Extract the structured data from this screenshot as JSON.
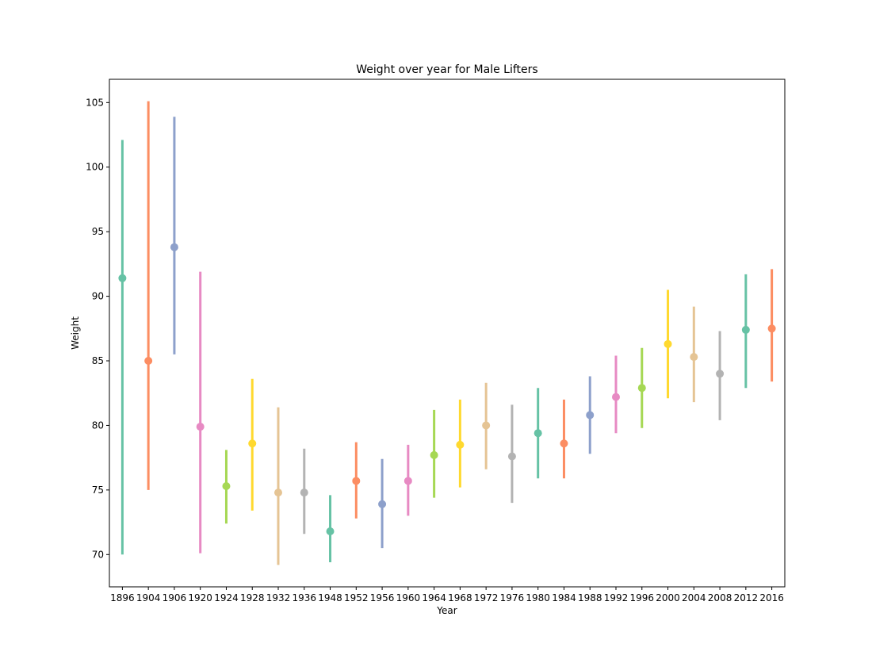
{
  "chart_data": {
    "type": "scatter",
    "title": "Weight over year for Male Lifters",
    "xlabel": "Year",
    "ylabel": "Weight",
    "ylim": [
      67.5,
      106.8
    ],
    "yticks": [
      70,
      75,
      80,
      85,
      90,
      95,
      100,
      105
    ],
    "grid": false,
    "legend": "none",
    "categories": [
      "1896",
      "1904",
      "1906",
      "1920",
      "1924",
      "1928",
      "1932",
      "1936",
      "1948",
      "1952",
      "1956",
      "1960",
      "1964",
      "1968",
      "1972",
      "1976",
      "1980",
      "1984",
      "1988",
      "1992",
      "1996",
      "2000",
      "2004",
      "2008",
      "2012",
      "2016"
    ],
    "values": [
      91.4,
      85.0,
      93.8,
      79.9,
      75.3,
      78.6,
      74.8,
      74.8,
      71.8,
      75.7,
      73.9,
      75.7,
      77.7,
      78.5,
      80.0,
      77.6,
      79.4,
      78.6,
      80.8,
      82.2,
      82.9,
      86.3,
      85.3,
      84.0,
      87.4,
      87.5
    ],
    "ci_low": [
      70.0,
      75.0,
      85.5,
      70.1,
      72.4,
      73.4,
      69.2,
      71.6,
      69.4,
      72.8,
      70.5,
      73.0,
      74.4,
      75.2,
      76.6,
      74.0,
      75.9,
      75.9,
      77.8,
      79.4,
      79.8,
      82.1,
      81.8,
      80.4,
      82.9,
      83.4
    ],
    "ci_high": [
      102.1,
      105.1,
      103.9,
      91.9,
      78.1,
      83.6,
      81.4,
      78.2,
      74.6,
      78.7,
      77.4,
      78.5,
      81.2,
      82.0,
      83.3,
      81.6,
      82.9,
      82.0,
      83.8,
      85.4,
      86.0,
      90.5,
      89.2,
      87.3,
      91.7,
      92.1
    ],
    "colors": [
      "#66c2a5",
      "#fc8d62",
      "#8da0cb",
      "#e78ac3",
      "#a6d854",
      "#ffd92f",
      "#e5c494",
      "#b3b3b3"
    ]
  }
}
